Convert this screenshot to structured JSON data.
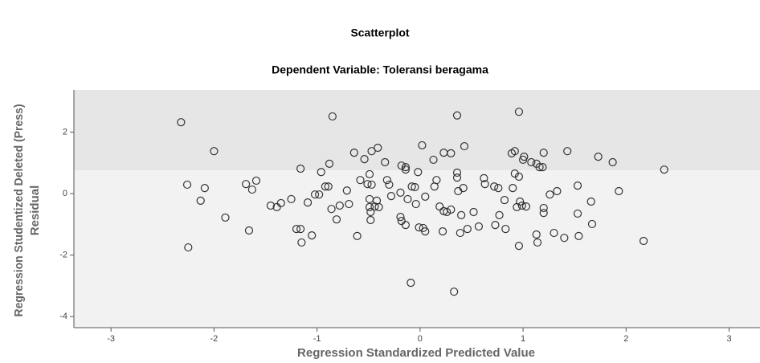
{
  "chart_data": {
    "type": "scatter",
    "title": "Scatterplot",
    "subtitle": "Dependent Variable: Toleransi beragama",
    "x_label": "Regression Standardized Predicted Value",
    "y_label": [
      "Regression Studentized Deleted (Press)",
      "Residual"
    ],
    "color": "#333333",
    "xlim": [
      -3.36,
      3.3
    ],
    "xticks": [
      -3,
      -2,
      -1,
      0,
      1,
      2,
      3
    ],
    "ylim": [
      -4.36,
      3.37
    ],
    "yticks": [
      -4,
      -2,
      0,
      2
    ],
    "x": [
      -2.32,
      -0.85,
      0.36,
      0.96,
      -2.0,
      -0.64,
      -0.47,
      -0.41,
      -0.54,
      -0.34,
      0.02,
      -0.18,
      -0.14,
      -0.14,
      0.13,
      0.23,
      0.3,
      0.43,
      0.89,
      0.92,
      1.01,
      1.08,
      1.13,
      1.16,
      1.19,
      1.0,
      1.2,
      1.43,
      1.73,
      1.87,
      2.37,
      -1.16,
      -0.88,
      -0.96,
      -2.26,
      -2.09,
      -2.13,
      -1.89,
      -1.69,
      -1.63,
      -1.59,
      -1.66,
      -2.25,
      -1.45,
      -1.39,
      -1.35,
      -1.25,
      -1.2,
      -1.16,
      -1.15,
      -1.05,
      -1.09,
      -1.02,
      -0.98,
      -0.92,
      -0.89,
      -0.86,
      -0.81,
      -0.78,
      -0.69,
      -0.71,
      -0.61,
      -0.58,
      -0.51,
      -0.49,
      -0.47,
      -0.49,
      -0.49,
      -0.48,
      -0.48,
      -0.44,
      -0.4,
      -0.42,
      -0.32,
      -0.3,
      -0.28,
      -0.19,
      -0.19,
      -0.18,
      -0.14,
      -0.12,
      -0.08,
      -0.05,
      -0.04,
      -0.02,
      -0.01,
      0.03,
      0.05,
      0.05,
      -0.09,
      0.33,
      0.14,
      0.16,
      0.19,
      0.23,
      0.26,
      0.3,
      0.22,
      0.36,
      0.36,
      0.37,
      0.4,
      0.39,
      0.46,
      0.42,
      0.52,
      0.57,
      0.62,
      0.63,
      0.72,
      0.76,
      0.77,
      0.73,
      0.82,
      0.83,
      0.92,
      0.9,
      0.94,
      0.96,
      0.97,
      0.99,
      1.03,
      0.96,
      1.13,
      1.2,
      1.2,
      1.14,
      1.26,
      1.33,
      1.3,
      1.4,
      1.53,
      1.53,
      1.54,
      1.66,
      1.67,
      1.93,
      2.17
    ],
    "y": [
      2.32,
      2.51,
      2.54,
      2.66,
      1.38,
      1.33,
      1.38,
      1.49,
      1.12,
      1.02,
      1.57,
      0.91,
      0.86,
      0.78,
      1.1,
      1.33,
      1.31,
      1.54,
      1.31,
      1.38,
      1.2,
      1.02,
      0.97,
      0.86,
      0.86,
      1.1,
      1.33,
      1.38,
      1.2,
      1.02,
      0.78,
      0.81,
      0.97,
      0.7,
      0.29,
      0.18,
      -0.23,
      -0.78,
      0.31,
      0.13,
      0.42,
      -1.2,
      -1.75,
      -0.39,
      -0.44,
      -0.31,
      -0.18,
      -1.15,
      -1.15,
      -1.59,
      -1.36,
      -0.29,
      -0.03,
      -0.03,
      0.23,
      0.23,
      -0.5,
      -0.84,
      -0.39,
      -0.34,
      0.1,
      -1.38,
      0.44,
      0.31,
      0.63,
      0.29,
      -0.18,
      -0.44,
      -0.6,
      -0.86,
      -0.42,
      -0.44,
      -0.23,
      0.44,
      0.29,
      -0.08,
      0.03,
      -0.76,
      -0.89,
      -1.02,
      -0.18,
      0.23,
      0.21,
      -0.34,
      0.7,
      -1.1,
      -1.12,
      -1.23,
      -0.1,
      -2.9,
      -3.19,
      0.23,
      0.44,
      -0.42,
      -0.57,
      -0.6,
      -0.52,
      -1.23,
      0.52,
      0.68,
      0.08,
      -0.7,
      -1.28,
      -1.15,
      0.18,
      -0.6,
      -1.07,
      0.5,
      0.31,
      0.23,
      0.18,
      -0.7,
      -1.02,
      -0.21,
      -1.15,
      0.65,
      0.18,
      -0.44,
      0.55,
      -0.26,
      -0.39,
      -0.42,
      -1.7,
      -1.33,
      -0.47,
      -0.63,
      -1.59,
      -0.03,
      0.08,
      -1.28,
      -1.44,
      0.26,
      -0.65,
      -1.38,
      -0.26,
      -0.99,
      0.08,
      -1.54
    ]
  }
}
